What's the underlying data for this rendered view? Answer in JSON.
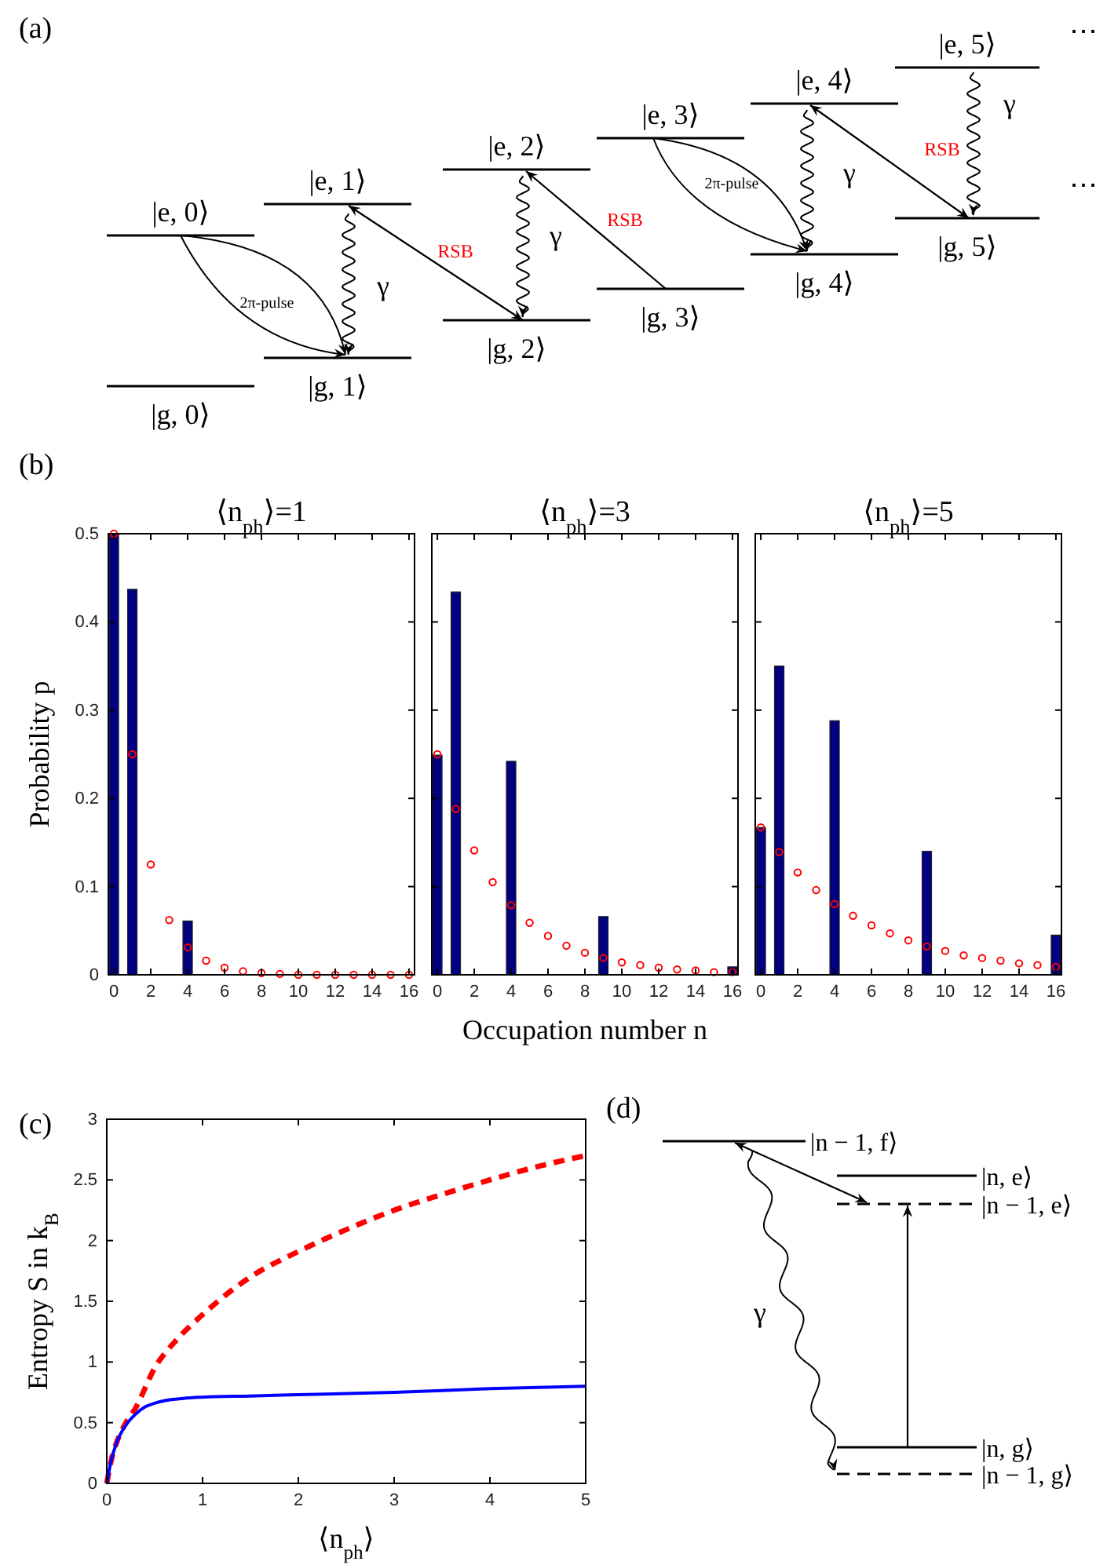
{
  "chart_data": [
    {
      "type": "other",
      "annotations": [
        "(a)",
        "|e, 0⟩",
        "|g, 0⟩",
        "|e, 1⟩",
        "|g, 1⟩",
        "|e, 2⟩",
        "|g, 2⟩",
        "|e, 3⟩",
        "|g, 3⟩",
        "|e, 4⟩",
        "|g, 4⟩",
        "|e, 5⟩",
        "|g, 5⟩",
        "2π-pulse",
        "γ",
        "RSB",
        "γ",
        "RSB",
        "2π-pulse",
        "γ",
        "RSB",
        "γ",
        "⋯",
        "⋯"
      ]
    },
    {
      "type": "bar",
      "title": "⟨n$_{ph}$⟩=1",
      "ylabel": "Probability p",
      "annotations": [
        "(b)"
      ],
      "xlim": [
        -0.3,
        16.3
      ],
      "xticks": [
        0,
        2,
        4,
        6,
        8,
        10,
        12,
        14,
        16
      ],
      "ylim": [
        0,
        0.5
      ],
      "yticks": [
        0,
        0.1,
        0.2,
        0.3,
        0.4,
        0.5
      ],
      "series": [
        {
          "type": "bar",
          "color": "#000080",
          "x": [
            0,
            1,
            4
          ],
          "values": [
            0.5,
            0.437,
            0.061
          ]
        },
        {
          "type": "scatter",
          "marker": "circle",
          "color": "#ff0000",
          "x": [
            0,
            1,
            2,
            3,
            4,
            5,
            6,
            7,
            8,
            9,
            10,
            11,
            12,
            13,
            14,
            15,
            16
          ],
          "values": [
            0.5,
            0.25,
            0.125,
            0.062,
            0.031,
            0.016,
            0.008,
            0.004,
            0.002,
            0.001,
            0,
            0,
            0,
            0,
            0,
            0,
            0
          ]
        }
      ]
    },
    {
      "type": "bar",
      "title": "⟨n$_{ph}$⟩=3",
      "xlabel": "Occupation number n",
      "tick_labels": "x",
      "xlim": [
        -0.3,
        16.3
      ],
      "xticks": [
        0,
        2,
        4,
        6,
        8,
        10,
        12,
        14,
        16
      ],
      "ylim": [
        0,
        0.5
      ],
      "yticks": [
        0,
        0.1,
        0.2,
        0.3,
        0.4,
        0.5
      ],
      "series": [
        {
          "type": "bar",
          "color": "#000080",
          "x": [
            0,
            1,
            4,
            9,
            16
          ],
          "values": [
            0.249,
            0.434,
            0.242,
            0.066,
            0.009
          ]
        },
        {
          "type": "scatter",
          "marker": "circle",
          "color": "#ff0000",
          "x": [
            0,
            1,
            2,
            3,
            4,
            5,
            6,
            7,
            8,
            9,
            10,
            11,
            12,
            13,
            14,
            15,
            16
          ],
          "values": [
            0.25,
            0.188,
            0.141,
            0.105,
            0.079,
            0.059,
            0.044,
            0.033,
            0.025,
            0.019,
            0.014,
            0.011,
            0.008,
            0.006,
            0.005,
            0.003,
            0.003
          ]
        }
      ]
    },
    {
      "type": "bar",
      "title": "⟨n$_{ph}$⟩=5",
      "tick_labels": "x",
      "xlim": [
        -0.3,
        16.3
      ],
      "xticks": [
        0,
        2,
        4,
        6,
        8,
        10,
        12,
        14,
        16
      ],
      "ylim": [
        0,
        0.5
      ],
      "yticks": [
        0,
        0.1,
        0.2,
        0.3,
        0.4,
        0.5
      ],
      "series": [
        {
          "type": "bar",
          "color": "#000080",
          "x": [
            0,
            1,
            4,
            9,
            16
          ],
          "values": [
            0.167,
            0.35,
            0.288,
            0.14,
            0.045
          ]
        },
        {
          "type": "scatter",
          "marker": "circle",
          "color": "#ff0000",
          "x": [
            0,
            1,
            2,
            3,
            4,
            5,
            6,
            7,
            8,
            9,
            10,
            11,
            12,
            13,
            14,
            15,
            16
          ],
          "values": [
            0.167,
            0.139,
            0.116,
            0.096,
            0.08,
            0.067,
            0.056,
            0.047,
            0.039,
            0.032,
            0.027,
            0.022,
            0.019,
            0.016,
            0.013,
            0.011,
            0.009
          ]
        }
      ]
    },
    {
      "type": "line",
      "xlabel": "⟨n$_{ph}$⟩",
      "ylabel": "Entropy S in k$_{B}$",
      "annotations": [
        "(c)"
      ],
      "xlim": [
        0,
        5
      ],
      "xticks": [
        0,
        1,
        2,
        3,
        4,
        5
      ],
      "ylim": [
        0,
        3
      ],
      "yticks": [
        0,
        0.5,
        1,
        1.5,
        2,
        2.5,
        3
      ],
      "series": [
        {
          "color": "#ff0000",
          "line_style": "dashed",
          "x": [
            0,
            0.05,
            0.1,
            0.2,
            0.3,
            0.5,
            0.75,
            1,
            1.5,
            2,
            2.5,
            3,
            3.5,
            4,
            4.5,
            5
          ],
          "values": [
            0,
            0.2,
            0.33,
            0.5,
            0.62,
            0.95,
            1.2,
            1.39,
            1.7,
            1.91,
            2.09,
            2.25,
            2.38,
            2.5,
            2.61,
            2.7
          ]
        },
        {
          "color": "#0000ff",
          "line_style": "solid",
          "x": [
            0,
            0.05,
            0.1,
            0.2,
            0.3,
            0.4,
            0.5,
            0.6,
            0.8,
            1,
            1.5,
            2,
            3,
            4,
            5
          ],
          "values": [
            0,
            0.2,
            0.33,
            0.48,
            0.57,
            0.63,
            0.66,
            0.68,
            0.7,
            0.71,
            0.72,
            0.73,
            0.75,
            0.78,
            0.8
          ]
        }
      ]
    },
    {
      "type": "other",
      "annotations": [
        "(d)",
        "|n − 1, f⟩",
        "|n, e⟩",
        "|n − 1, e⟩",
        "|n, g⟩",
        "|n − 1, g⟩",
        "γ"
      ]
    }
  ]
}
